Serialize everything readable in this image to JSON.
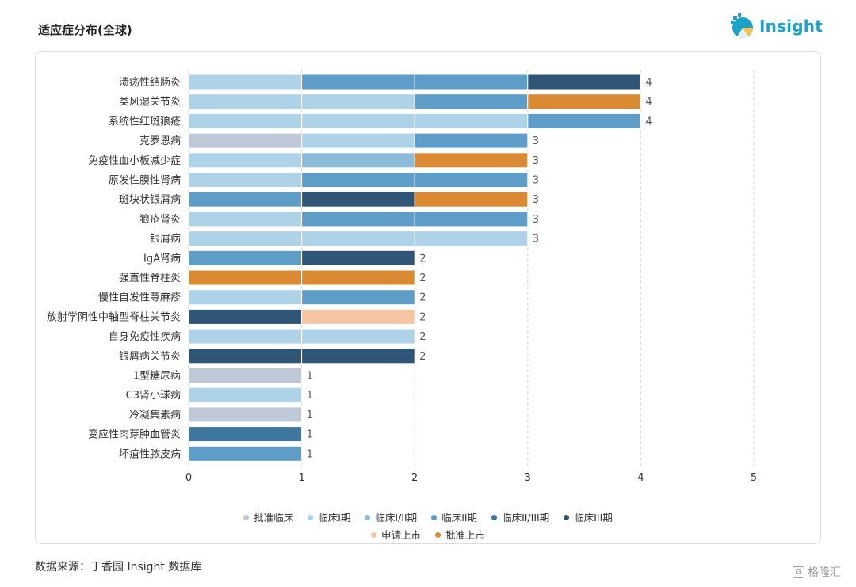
{
  "header": {
    "title": "适应症分布(全球)"
  },
  "logo": {
    "text": "Insight",
    "icon": "insight-logo-icon"
  },
  "source": {
    "text": "数据来源：丁香园 Insight 数据库"
  },
  "watermark": {
    "text": "格隆汇",
    "icon": "gelonghui-logo-icon"
  },
  "colors": {
    "批准临床": "#bfc8d6",
    "临床I期": "#aed3e8",
    "临床I/II期": "#8dbcdb",
    "临床II期": "#5f9dc9",
    "临床II/III期": "#3f77a0",
    "临床III期": "#2f5677",
    "申请上市": "#f6c6a4",
    "批准上市": "#d98a32"
  },
  "chart_data": {
    "type": "bar",
    "orientation": "horizontal",
    "stacked": true,
    "title": "适应症分布(全球)",
    "xlim": [
      0,
      5
    ],
    "xticks": [
      0,
      1,
      2,
      3,
      4,
      5
    ],
    "grid": "vertical-dashed",
    "legend_position": "bottom",
    "legend": [
      "批准临床",
      "临床I期",
      "临床I/II期",
      "临床II期",
      "临床II/III期",
      "临床III期",
      "申请上市",
      "批准上市"
    ],
    "rows": [
      {
        "label": "溃疡性结肠炎",
        "total": 4,
        "segments": [
          "临床I期",
          "临床II期",
          "临床II期",
          "临床III期"
        ]
      },
      {
        "label": "类风湿关节炎",
        "total": 4,
        "segments": [
          "临床I期",
          "临床I期",
          "临床II期",
          "批准上市"
        ]
      },
      {
        "label": "系统性红斑狼疮",
        "total": 4,
        "segments": [
          "临床I期",
          "临床I期",
          "临床I期",
          "临床II期"
        ]
      },
      {
        "label": "克罗恩病",
        "total": 3,
        "segments": [
          "批准临床",
          "临床I期",
          "临床II期"
        ]
      },
      {
        "label": "免疫性血小板减少症",
        "total": 3,
        "segments": [
          "临床I期",
          "临床I/II期",
          "批准上市"
        ]
      },
      {
        "label": "原发性膜性肾病",
        "total": 3,
        "segments": [
          "临床I期",
          "临床II期",
          "临床II期"
        ]
      },
      {
        "label": "斑块状银屑病",
        "total": 3,
        "segments": [
          "临床II期",
          "临床III期",
          "批准上市"
        ]
      },
      {
        "label": "狼疮肾炎",
        "total": 3,
        "segments": [
          "临床I期",
          "临床II期",
          "临床II期"
        ]
      },
      {
        "label": "银屑病",
        "total": 3,
        "segments": [
          "临床I期",
          "临床I期",
          "临床I期"
        ]
      },
      {
        "label": "IgA肾病",
        "total": 2,
        "segments": [
          "临床II期",
          "临床III期"
        ]
      },
      {
        "label": "强直性脊柱炎",
        "total": 2,
        "segments": [
          "批准上市",
          "批准上市"
        ]
      },
      {
        "label": "慢性自发性荨麻疹",
        "total": 2,
        "segments": [
          "临床I期",
          "临床II期"
        ]
      },
      {
        "label": "放射学阴性中轴型脊柱关节炎",
        "total": 2,
        "segments": [
          "临床III期",
          "申请上市"
        ]
      },
      {
        "label": "自身免疫性疾病",
        "total": 2,
        "segments": [
          "临床I期",
          "临床I期"
        ]
      },
      {
        "label": "银屑病关节炎",
        "total": 2,
        "segments": [
          "临床III期",
          "临床III期"
        ]
      },
      {
        "label": "1型糖尿病",
        "total": 1,
        "segments": [
          "批准临床"
        ]
      },
      {
        "label": "C3肾小球病",
        "total": 1,
        "segments": [
          "临床I期"
        ]
      },
      {
        "label": "冷凝集素病",
        "total": 1,
        "segments": [
          "批准临床"
        ]
      },
      {
        "label": "变应性肉芽肿血管炎",
        "total": 1,
        "segments": [
          "临床II/III期"
        ]
      },
      {
        "label": "坏疽性脓皮病",
        "total": 1,
        "segments": [
          "临床II期"
        ]
      }
    ]
  }
}
